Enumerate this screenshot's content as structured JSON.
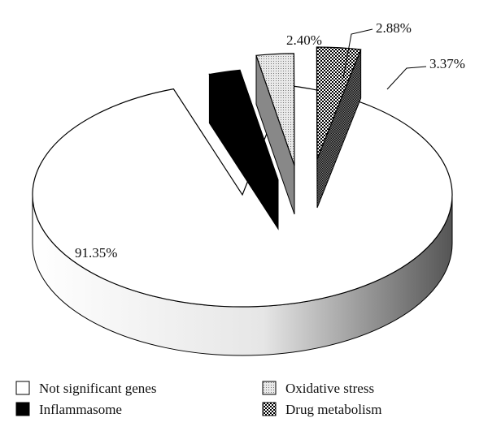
{
  "chart_data": {
    "type": "pie",
    "style": "3d-exploded",
    "legend_placement": "bottom",
    "slices": [
      {
        "name": "Not significant genes",
        "value": 91.35,
        "label": "91.35%",
        "fill": "#ffffff",
        "side": "#e0e0e0",
        "pattern": "none"
      },
      {
        "name": "Inflammasome",
        "value": 2.4,
        "label": "2.40%",
        "fill": "#000000",
        "side": "#000000",
        "pattern": "none"
      },
      {
        "name": "Oxidative stress",
        "value": 2.88,
        "label": "2.88%",
        "fill": "#cccccc",
        "side": "#888888",
        "pattern": "dots-light"
      },
      {
        "name": "Drug metabolism",
        "value": 3.37,
        "label": "3.37%",
        "fill": "#555555",
        "side": "#333333",
        "pattern": "checker"
      }
    ]
  }
}
